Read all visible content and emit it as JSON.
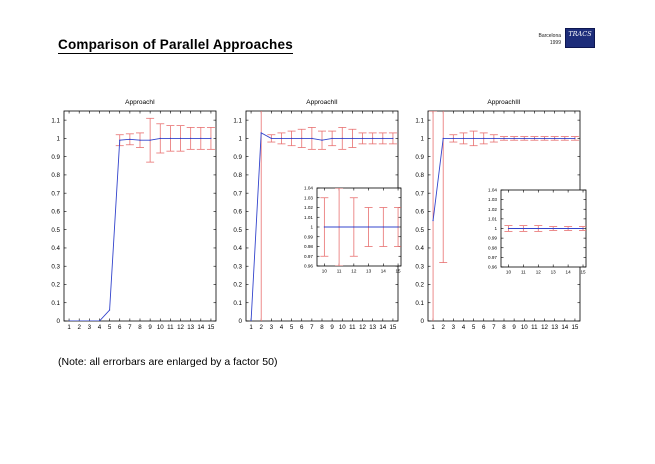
{
  "slide": {
    "title": "Comparison of Parallel Approaches",
    "location": "Barcelona",
    "year": "1999",
    "logo_text": "TRACS",
    "note": "(Note: all errorbars are enlarged by a factor 50)"
  },
  "colors": {
    "line": "#3344cc",
    "errorbar": "#e87070",
    "axis": "#000000"
  },
  "chart_data": [
    {
      "type": "line",
      "title": "ApproachI",
      "xlabel": "",
      "ylabel": "",
      "xlim": [
        0.5,
        15.5
      ],
      "ylim": [
        0,
        1.15
      ],
      "xticks": [
        1,
        2,
        3,
        4,
        5,
        6,
        7,
        8,
        9,
        10,
        11,
        12,
        13,
        14,
        15
      ],
      "yticks": [
        0,
        0.1,
        0.2,
        0.3,
        0.4,
        0.5,
        0.6,
        0.7,
        0.8,
        0.9,
        1,
        1.1
      ],
      "ytick_labels": [
        "0",
        "0.1",
        "0.2",
        "0.3",
        "0.4",
        "0.5",
        "0.6",
        "0.7",
        "0.8",
        "0.9",
        "1",
        "1.1"
      ],
      "grid": false,
      "series": [
        {
          "x": [
            1,
            2,
            3,
            4,
            5,
            6,
            7,
            8,
            9,
            10,
            11,
            12,
            13,
            14,
            15
          ],
          "y": [
            0,
            0,
            0,
            0,
            0.06,
            0.99,
            0.995,
            0.99,
            0.99,
            1,
            1,
            1,
            1,
            1,
            1
          ],
          "err": [
            0,
            0,
            0,
            0,
            0,
            0.03,
            0.03,
            0.04,
            0.12,
            0.08,
            0.07,
            0.07,
            0.06,
            0.06,
            0.06
          ]
        }
      ]
    },
    {
      "type": "line",
      "title": "ApproachII",
      "xlabel": "",
      "ylabel": "",
      "xlim": [
        0.5,
        15.5
      ],
      "ylim": [
        0,
        1.15
      ],
      "xticks": [
        1,
        2,
        3,
        4,
        5,
        6,
        7,
        8,
        9,
        10,
        11,
        12,
        13,
        14,
        15
      ],
      "yticks": [
        0,
        0.1,
        0.2,
        0.3,
        0.4,
        0.5,
        0.6,
        0.7,
        0.8,
        0.9,
        1,
        1.1
      ],
      "ytick_labels": [
        "0",
        "0.1",
        "0.2",
        "0.3",
        "0.4",
        "0.5",
        "0.6",
        "0.7",
        "0.8",
        "0.9",
        "1",
        "1.1"
      ],
      "grid": false,
      "series": [
        {
          "x": [
            1,
            2,
            3,
            4,
            5,
            6,
            7,
            8,
            9,
            10,
            11,
            12,
            13,
            14,
            15
          ],
          "y": [
            0,
            1.03,
            1,
            1,
            1,
            1,
            1,
            0.99,
            1,
            1,
            1,
            1,
            1,
            1,
            1
          ],
          "err": [
            0,
            1.2,
            0.02,
            0.03,
            0.04,
            0.05,
            0.06,
            0.05,
            0.04,
            0.06,
            0.05,
            0.03,
            0.03,
            0.03,
            0.03
          ]
        }
      ],
      "inset": {
        "xlim": [
          9.5,
          15.2
        ],
        "ylim": [
          0.96,
          1.04
        ],
        "xticks": [
          10,
          11,
          12,
          13,
          14,
          15
        ],
        "yticks": [
          0.96,
          0.97,
          0.98,
          0.99,
          1,
          1.01,
          1.02,
          1.03,
          1.04
        ],
        "ytick_labels": [
          "0.96",
          "0.97",
          "0.98",
          "0.99",
          "1",
          "1.01",
          "1.02",
          "1.03",
          "1.04"
        ],
        "x": [
          10,
          11,
          12,
          13,
          14,
          15
        ],
        "y": [
          1,
          1,
          1,
          1,
          1,
          1
        ],
        "err": [
          0.03,
          0.04,
          0.03,
          0.02,
          0.02,
          0.02
        ]
      }
    },
    {
      "type": "line",
      "title": "ApproachIII",
      "xlabel": "",
      "ylabel": "",
      "xlim": [
        0.5,
        15.5
      ],
      "ylim": [
        0,
        1.15
      ],
      "xticks": [
        1,
        2,
        3,
        4,
        5,
        6,
        7,
        8,
        9,
        10,
        11,
        12,
        13,
        14,
        15
      ],
      "yticks": [
        0,
        0.1,
        0.2,
        0.3,
        0.4,
        0.5,
        0.6,
        0.7,
        0.8,
        0.9,
        1,
        1.1
      ],
      "ytick_labels": [
        "0",
        "0.1",
        "0.2",
        "0.3",
        "0.4",
        "0.5",
        "0.6",
        "0.7",
        "0.8",
        "0.9",
        "1",
        "1.1"
      ],
      "grid": false,
      "series": [
        {
          "x": [
            1,
            2,
            3,
            4,
            5,
            6,
            7,
            8,
            9,
            10,
            11,
            12,
            13,
            14,
            15
          ],
          "y": [
            0.55,
            1,
            1,
            1,
            1,
            1,
            1,
            1,
            1,
            1,
            1,
            1,
            1,
            1,
            1
          ],
          "err": [
            0.6,
            0.68,
            0.02,
            0.03,
            0.04,
            0.03,
            0.02,
            0.01,
            0.01,
            0.01,
            0.01,
            0.01,
            0.01,
            0.01,
            0.01
          ]
        }
      ],
      "inset": {
        "xlim": [
          9.5,
          15.2
        ],
        "ylim": [
          0.96,
          1.04
        ],
        "xticks": [
          10,
          11,
          12,
          13,
          14,
          15
        ],
        "yticks": [
          0.96,
          0.97,
          0.98,
          0.99,
          1,
          1.01,
          1.02,
          1.03,
          1.04
        ],
        "ytick_labels": [
          "0.96",
          "0.97",
          "0.98",
          "0.99",
          "1",
          "1.01",
          "1.02",
          "1.03",
          "1.04"
        ],
        "x": [
          10,
          11,
          12,
          13,
          14,
          15
        ],
        "y": [
          1,
          1,
          1,
          1,
          1,
          1
        ],
        "err": [
          0.003,
          0.003,
          0.003,
          0.002,
          0.002,
          0.002
        ]
      }
    }
  ]
}
